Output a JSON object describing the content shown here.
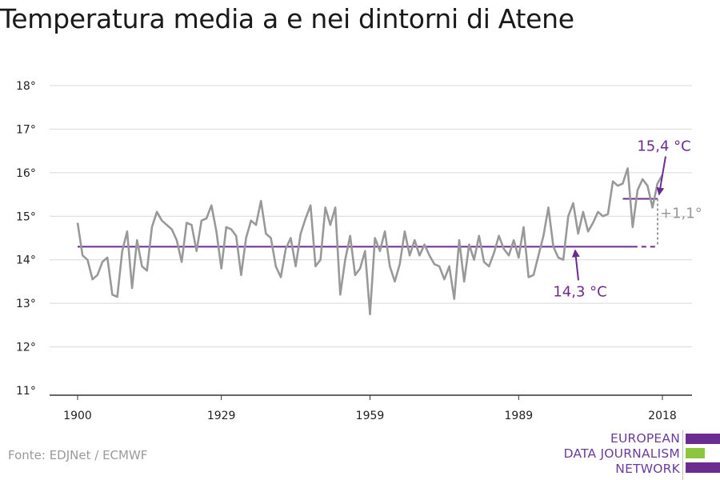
{
  "title": "Temperatura media a e nei dintorni di Atene",
  "source": "Fonte: EDJNet / ECMWF",
  "logo": {
    "lines": [
      "EUROPEAN",
      "DATA JOURNALISM",
      "NETWORK"
    ],
    "colors": {
      "purple": "#6a2c91",
      "green": "#8cc63f"
    }
  },
  "colors": {
    "line": "#999999",
    "accent": "#6a2c91",
    "grid": "#d9d9d9",
    "axis": "#333333",
    "diff": "#999999"
  },
  "chart_data": {
    "type": "line",
    "title": "Temperatura media a e nei dintorni di Atene",
    "xlabel": "",
    "ylabel": "",
    "xlim": [
      1900,
      2018
    ],
    "ylim": [
      11,
      18
    ],
    "y_ticks": [
      {
        "value": 11,
        "label": "11°"
      },
      {
        "value": 12,
        "label": "12°"
      },
      {
        "value": 13,
        "label": "13°"
      },
      {
        "value": 14,
        "label": "14°"
      },
      {
        "value": 15,
        "label": "15°"
      },
      {
        "value": 16,
        "label": "16°"
      },
      {
        "value": 17,
        "label": "17°"
      },
      {
        "value": 18,
        "label": "18°"
      }
    ],
    "x_ticks": [
      {
        "value": 1900,
        "label": "1900"
      },
      {
        "value": 1929,
        "label": "1929"
      },
      {
        "value": 1959,
        "label": "1959"
      },
      {
        "value": 1989,
        "label": "1989"
      },
      {
        "value": 2018,
        "label": "2018"
      }
    ],
    "grid": true,
    "series": [
      {
        "x": [
          1900,
          1901,
          1902,
          1903,
          1904,
          1905,
          1906,
          1907,
          1908,
          1909,
          1910,
          1911,
          1912,
          1913,
          1914,
          1915,
          1916,
          1917,
          1918,
          1919,
          1920,
          1921,
          1922,
          1923,
          1924,
          1925,
          1926,
          1927,
          1928,
          1929,
          1930,
          1931,
          1932,
          1933,
          1934,
          1935,
          1936,
          1937,
          1938,
          1939,
          1940,
          1941,
          1942,
          1943,
          1944,
          1945,
          1946,
          1947,
          1948,
          1949,
          1950,
          1951,
          1952,
          1953,
          1954,
          1955,
          1956,
          1957,
          1958,
          1959,
          1960,
          1961,
          1962,
          1963,
          1964,
          1965,
          1966,
          1967,
          1968,
          1969,
          1970,
          1971,
          1972,
          1973,
          1974,
          1975,
          1976,
          1977,
          1978,
          1979,
          1980,
          1981,
          1982,
          1983,
          1984,
          1985,
          1986,
          1987,
          1988,
          1989,
          1990,
          1991,
          1992,
          1993,
          1994,
          1995,
          1996,
          1997,
          1998,
          1999,
          2000,
          2001,
          2002,
          2003,
          2004,
          2005,
          2006,
          2007,
          2008,
          2009,
          2010,
          2011,
          2012,
          2013,
          2014,
          2015,
          2016,
          2017,
          2018
        ],
        "values": [
          14.85,
          14.1,
          14.0,
          13.55,
          13.65,
          13.95,
          14.05,
          13.2,
          13.15,
          14.2,
          14.65,
          13.35,
          14.45,
          13.85,
          13.75,
          14.75,
          15.1,
          14.9,
          14.8,
          14.7,
          14.45,
          13.95,
          14.85,
          14.8,
          14.2,
          14.9,
          14.95,
          15.25,
          14.65,
          13.8,
          14.75,
          14.7,
          14.55,
          13.65,
          14.5,
          14.9,
          14.8,
          15.35,
          14.6,
          14.5,
          13.85,
          13.6,
          14.25,
          14.5,
          13.85,
          14.6,
          14.95,
          15.25,
          13.85,
          14.0,
          15.2,
          14.8,
          15.2,
          13.2,
          14.0,
          14.55,
          13.65,
          13.8,
          14.2,
          12.75,
          14.5,
          14.2,
          14.65,
          13.85,
          13.5,
          13.9,
          14.65,
          14.1,
          14.45,
          14.1,
          14.35,
          14.1,
          13.9,
          13.85,
          13.55,
          13.85,
          13.1,
          14.45,
          13.5,
          14.35,
          14.0,
          14.55,
          13.95,
          13.85,
          14.15,
          14.55,
          14.25,
          14.1,
          14.45,
          14.05,
          14.75,
          13.6,
          13.65,
          14.1,
          14.55,
          15.2,
          14.3,
          14.05,
          14.0,
          15.0,
          15.3,
          14.6,
          15.1,
          14.65,
          14.85,
          15.1,
          15.0,
          15.05,
          15.8,
          15.7,
          15.75,
          16.1,
          14.75,
          15.6,
          15.85,
          15.7,
          15.2,
          15.75,
          15.95
        ]
      }
    ],
    "annotations": {
      "baseline": {
        "value": 14.3,
        "label": "14,3 °C",
        "x_from": 1900,
        "x_to": 2012
      },
      "recent": {
        "value": 15.4,
        "label": "15,4 °C",
        "x_from": 2010,
        "x_to": 2018
      },
      "difference": {
        "label": "+1,1°"
      }
    }
  }
}
